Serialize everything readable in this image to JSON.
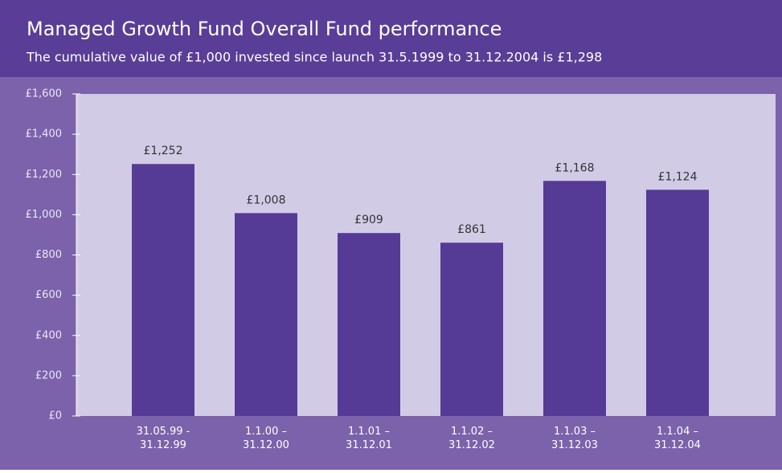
{
  "chart_data": {
    "type": "bar",
    "title": "Managed Growth Fund Overall Fund performance",
    "subtitle": "The cumulative value of £1,000 invested since launch 31.5.1999 to 31.12.2004 is £1,298",
    "categories": [
      "31.05.99 -\n31.12.99",
      "1.1.00 –\n31.12.00",
      "1.1.01 –\n31.12.01",
      "1.1.02 –\n31.12.02",
      "1.1.03 –\n31.12.03",
      "1.1.04 –\n31.12.04"
    ],
    "values": [
      1252,
      1008,
      909,
      861,
      1168,
      1124
    ],
    "value_labels": [
      "£1,252",
      "£1,008",
      "£909",
      "£861",
      "£1,168",
      "£1,124"
    ],
    "color": "#553b95",
    "ylim": [
      0,
      1600
    ],
    "yticks": [
      {
        "value": 0,
        "label": "£0"
      },
      {
        "value": 200,
        "label": "£200"
      },
      {
        "value": 400,
        "label": "£400"
      },
      {
        "value": 600,
        "label": "£600"
      },
      {
        "value": 800,
        "label": "£800"
      },
      {
        "value": 1000,
        "label": "£1,000"
      },
      {
        "value": 1200,
        "label": "£1,200"
      },
      {
        "value": 1400,
        "label": "£1,400"
      },
      {
        "value": 1600,
        "label": "£1,600"
      }
    ]
  }
}
